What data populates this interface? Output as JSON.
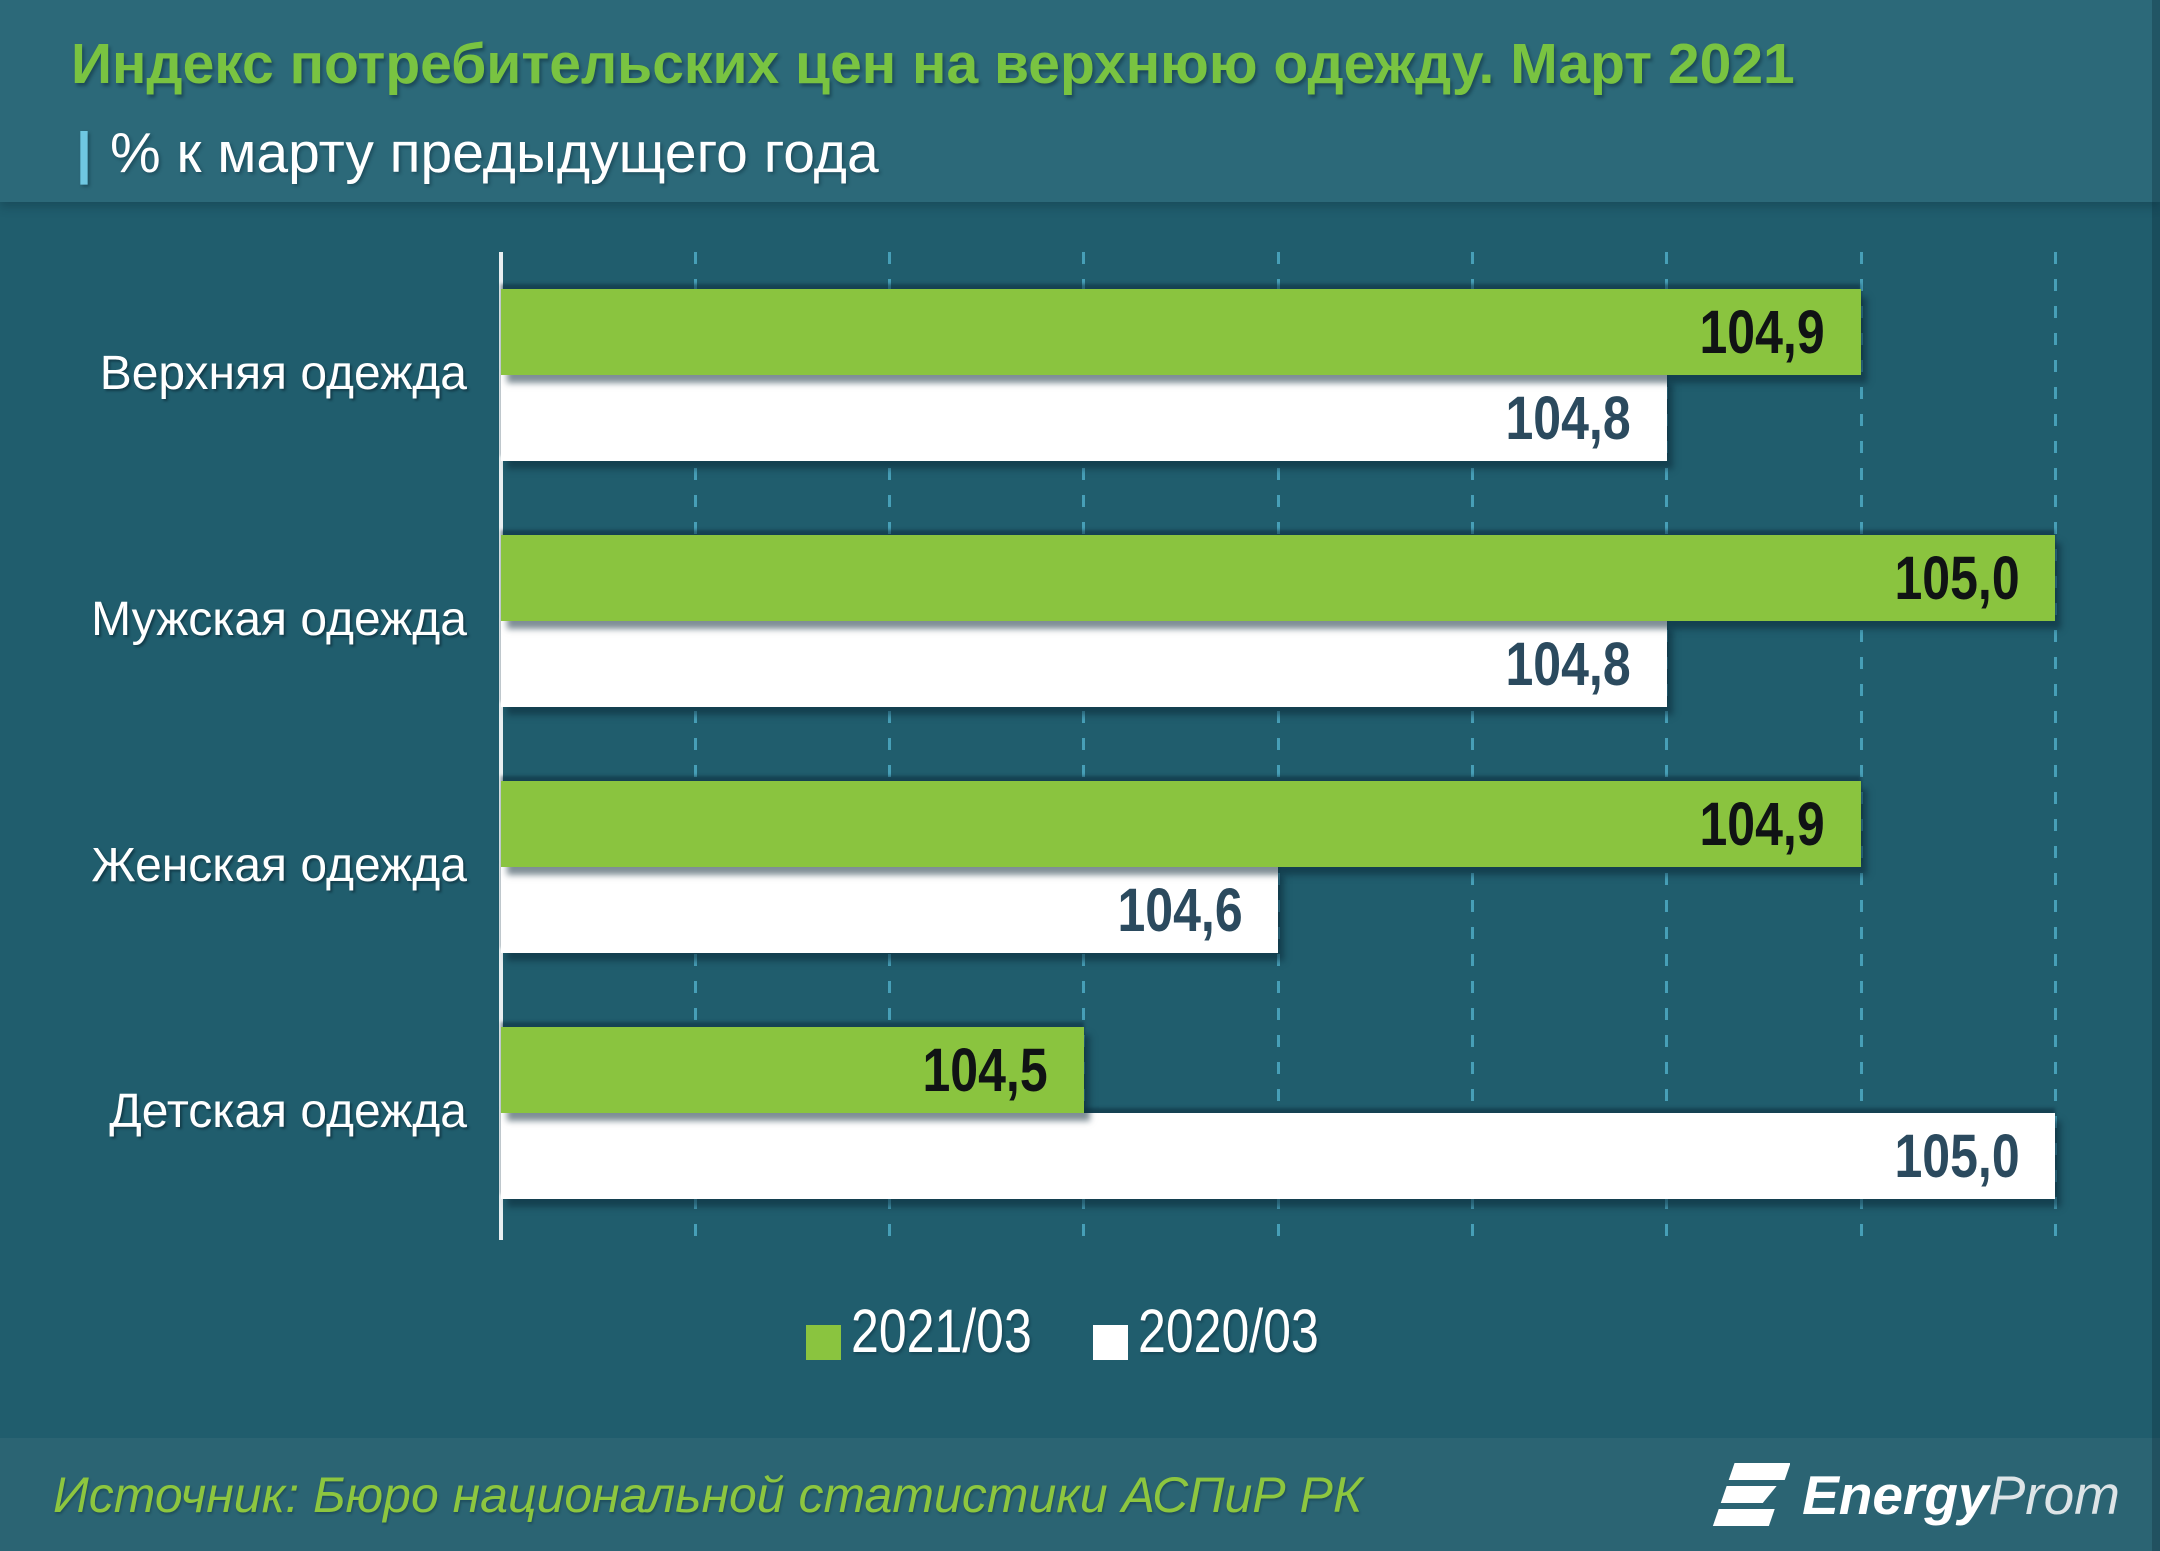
{
  "header": {
    "title": "Индекс потребительских цен на верхнюю одежду. Март 2021",
    "subtitle_pipe": "|",
    "subtitle": "% к марту предыдущего года"
  },
  "footer": {
    "source": "Источник: Бюро национальной статистики АСПиР РК",
    "brand_bold": "Energy",
    "brand_light": "Prom"
  },
  "colors": {
    "header_bg": "#2c6979",
    "chart_bg": "#205d6d",
    "footer_bg": "#2b6473",
    "series_2021": "#8ac43f",
    "series_2020": "#ffffff",
    "title_green": "#79c341",
    "gridline": "#4ba6bf",
    "axis": "#e9eff1"
  },
  "chart_data": {
    "type": "bar",
    "orientation": "horizontal",
    "title": "Индекс потребительских цен на верхнюю одежду. Март 2021",
    "subtitle": "| % к марту предыдущего года",
    "categories": [
      "Верхняя одежда",
      "Мужская одежда",
      "Женская одежда",
      "Детская одежда"
    ],
    "series": [
      {
        "name": "2021/03",
        "color": "#8ac43f",
        "values": [
          104.9,
          105.0,
          104.9,
          104.5
        ],
        "labels": [
          "104,9",
          "105,0",
          "104,9",
          "104,5"
        ]
      },
      {
        "name": "2020/03",
        "color": "#ffffff",
        "values": [
          104.8,
          104.8,
          104.6,
          105.0
        ],
        "labels": [
          "104,8",
          "104,8",
          "104,6",
          "105,0"
        ]
      }
    ],
    "xlim": [
      104.2,
      105.05
    ],
    "grid_step": 0.1,
    "grid": true,
    "legend_position": "bottom",
    "value_labels": "inside-end",
    "source": "Источник: Бюро национальной статистики АСПиР РК"
  }
}
